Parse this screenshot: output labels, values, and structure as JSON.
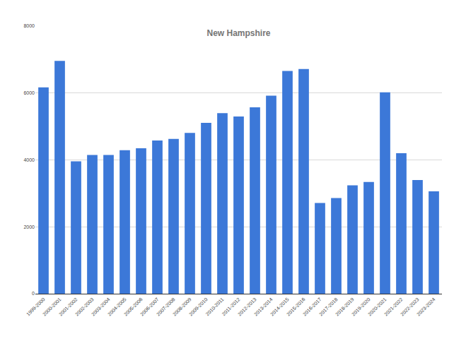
{
  "chart_data": {
    "type": "bar",
    "title": "New Hampshire",
    "categories": [
      "1999-2000",
      "2000-2001",
      "2001-2002",
      "2002-2003",
      "2003-2004",
      "2004-2005",
      "2005-2006",
      "2006-2007",
      "2007-2008",
      "2008-2009",
      "2009-2010",
      "2010-2011",
      "2011-2012",
      "2012-2013",
      "2013-2014",
      "2014-2015",
      "2015-2016",
      "2016-2017",
      "2017-2018",
      "2018-2019",
      "2019-2020",
      "2020-2021",
      "2021-2022",
      "2022-2023",
      "2023-2024"
    ],
    "values": [
      6170,
      6960,
      3960,
      4150,
      4150,
      4290,
      4350,
      4580,
      4630,
      4810,
      5110,
      5400,
      5300,
      5570,
      5920,
      6660,
      6720,
      2710,
      2860,
      3240,
      3340,
      6020,
      4200,
      3400,
      3060
    ],
    "color": "#3c78d8",
    "ylim": [
      0,
      8000
    ],
    "yticks": [
      0,
      2000,
      4000,
      6000,
      8000
    ],
    "grid": true
  }
}
